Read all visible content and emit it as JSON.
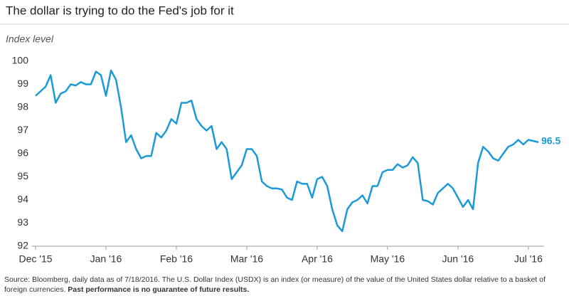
{
  "chart_data": {
    "type": "line",
    "title": "The dollar is trying to do the Fed's job for it",
    "y_axis_label": "Index level",
    "color": "#1a9ad6",
    "categories": [
      "Dec '15",
      null,
      null,
      null,
      null,
      null,
      null,
      null,
      null,
      null,
      null,
      null,
      null,
      null,
      "Jan '16",
      null,
      null,
      null,
      null,
      null,
      null,
      null,
      null,
      null,
      null,
      null,
      null,
      null,
      "Feb '16",
      null,
      null,
      null,
      null,
      null,
      null,
      null,
      null,
      null,
      null,
      null,
      null,
      null,
      "Mar '16",
      null,
      null,
      null,
      null,
      null,
      null,
      null,
      null,
      null,
      null,
      null,
      null,
      null,
      "Apr '16",
      null,
      null,
      null,
      null,
      null,
      null,
      null,
      null,
      null,
      null,
      null,
      null,
      null,
      "May '16",
      null,
      null,
      null,
      null,
      null,
      null,
      null,
      null,
      null,
      null,
      null,
      null,
      null,
      "Jun '16",
      null,
      null,
      null,
      null,
      null,
      null,
      null,
      null,
      null,
      null,
      null,
      null,
      null,
      "Jul '16",
      null,
      null
    ],
    "values": [
      98.5,
      98.7,
      98.9,
      99.4,
      98.2,
      98.6,
      98.7,
      99.0,
      98.95,
      99.1,
      99.0,
      99.0,
      99.55,
      99.4,
      98.5,
      99.6,
      99.2,
      98.0,
      96.5,
      96.8,
      96.2,
      95.8,
      95.9,
      95.9,
      96.9,
      96.7,
      97.0,
      97.5,
      97.3,
      98.2,
      98.2,
      98.3,
      97.5,
      97.2,
      97.0,
      97.2,
      96.2,
      96.5,
      96.2,
      94.9,
      95.2,
      95.5,
      96.2,
      96.2,
      95.9,
      94.8,
      94.6,
      94.5,
      94.5,
      94.45,
      94.1,
      94.0,
      94.8,
      94.7,
      94.7,
      94.1,
      94.9,
      95.0,
      94.6,
      93.6,
      92.9,
      92.65,
      93.6,
      93.9,
      94.0,
      94.2,
      93.85,
      94.6,
      94.6,
      95.2,
      95.3,
      95.3,
      95.55,
      95.4,
      95.5,
      95.85,
      95.6,
      94.0,
      93.95,
      93.8,
      94.3,
      94.5,
      94.7,
      94.5,
      94.1,
      93.7,
      94.0,
      93.6,
      95.6,
      96.3,
      96.1,
      95.8,
      95.7,
      96.0,
      96.3,
      96.4,
      96.6,
      96.4,
      96.6,
      96.55,
      96.5
    ],
    "ylim": [
      92,
      100
    ],
    "yticks": [
      92,
      93,
      94,
      95,
      96,
      97,
      98,
      99,
      100
    ],
    "source": "Source: Bloomberg, daily data as of 7/18/2016. The U.S. Dollar Index (USDX) is an index (or measure) of the value of the United States dollar relative to a basket of foreign currencies.",
    "disclaimer": "Past performance is no guarantee of future results."
  }
}
